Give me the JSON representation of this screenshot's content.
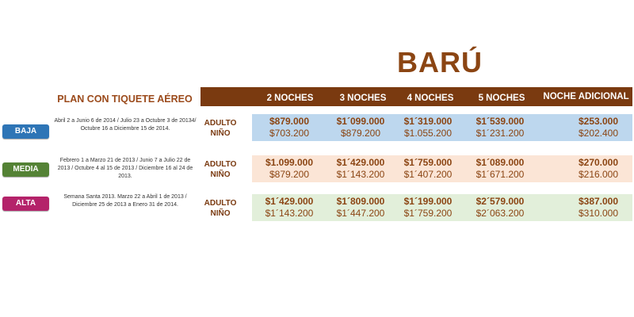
{
  "title": "BARÚ",
  "plan_label": "PLAN CON TIQUETE AÉREO",
  "columns": [
    "2 NOCHES",
    "3 NOCHES",
    "4 NOCHES",
    "5 NOCHES",
    "NOCHE ADICIONAL"
  ],
  "age_labels": {
    "adult": "ADULTO",
    "child": "NIÑO"
  },
  "seasons": [
    {
      "name": "BAJA",
      "color": "#2E75B6",
      "band_color": "#BDD7EE",
      "dates": "Abril 2 a Junio 6 de 2014 / Julio 23 a Octubre 3 de 20134/ Octubre 16 a Diciembre 15 de 2014.",
      "prices": [
        {
          "adult": "$879.000",
          "child": "$703.200"
        },
        {
          "adult": "$1´099.000",
          "child": "$879.200"
        },
        {
          "adult": "$1´319.000",
          "child": "$1.055.200"
        },
        {
          "adult": "$1´539.000",
          "child": "$1´231.200"
        },
        {
          "adult": "$253.000",
          "child": "$202.400"
        }
      ]
    },
    {
      "name": "MEDIA",
      "color": "#548235",
      "band_color": "#FBE5D6",
      "dates": "Febrero 1 a Marzo 21 de 2013 / Junio 7 a Julio 22 de 2013 / Octubre 4 al 15 de 2013 / Diciembre 16 al 24 de 2013.",
      "prices": [
        {
          "adult": "$1.099.000",
          "child": "$879.200"
        },
        {
          "adult": "$1´429.000",
          "child": "$1´143.200"
        },
        {
          "adult": "$1´759.000",
          "child": "$1´407.200"
        },
        {
          "adult": "$1´089.000",
          "child": "$1´671.200"
        },
        {
          "adult": "$270.000",
          "child": "$216.000"
        }
      ]
    },
    {
      "name": "ALTA",
      "color": "#B4236A",
      "band_color": "#E2EFDA",
      "dates": "Semana Santa 2013. Marzo 22 a Abril 1 de 2013 / Diciembre 25 de 2013 a Enero 31 de 2014.",
      "prices": [
        {
          "adult": "$1´429.000",
          "child": "$1´143.200"
        },
        {
          "adult": "$1´809.000",
          "child": "$1´447.200"
        },
        {
          "adult": "$1´199.000",
          "child": "$1´759.200"
        },
        {
          "adult": "$2´579.000",
          "child": "$2´063.200"
        },
        {
          "adult": "$387.000",
          "child": "$310.000"
        }
      ]
    }
  ]
}
